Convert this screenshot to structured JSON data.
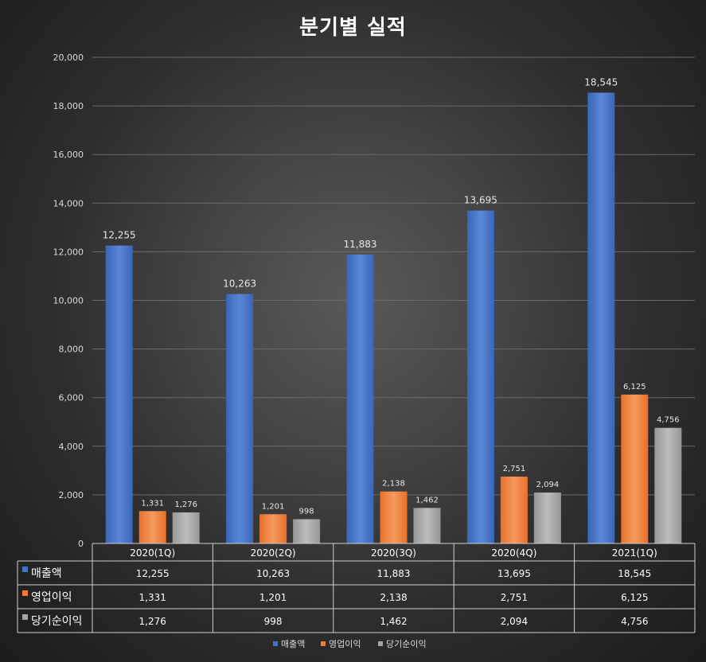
{
  "chart_data": {
    "type": "bar",
    "title": "분기별 실적",
    "categories": [
      "2020(1Q)",
      "2020(2Q)",
      "2020(3Q)",
      "2020(4Q)",
      "2021(1Q)"
    ],
    "series": [
      {
        "name": "매출액",
        "values": [
          12255,
          10263,
          11883,
          13695,
          18545
        ],
        "color": "#4472c4"
      },
      {
        "name": "영업이익",
        "values": [
          1331,
          1201,
          2138,
          2751,
          6125
        ],
        "color": "#ed7d31"
      },
      {
        "name": "당기순이익",
        "values": [
          1276,
          998,
          1462,
          2094,
          4756
        ],
        "color": "#a5a5a5"
      }
    ],
    "ylim": [
      0,
      20000
    ],
    "yticks": [
      0,
      2000,
      4000,
      6000,
      8000,
      10000,
      12000,
      14000,
      16000,
      18000,
      20000
    ],
    "grid": true,
    "legend": "bottom",
    "data_table": true
  }
}
